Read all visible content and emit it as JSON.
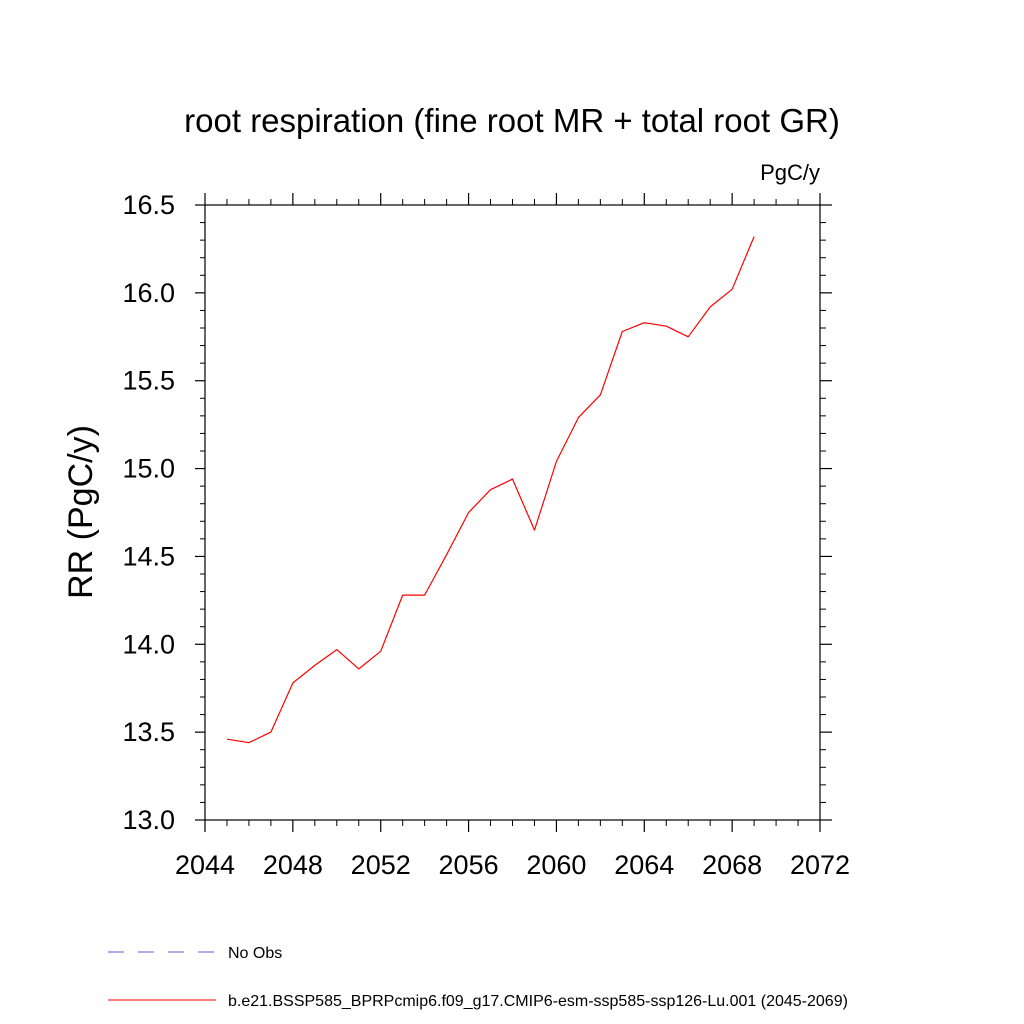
{
  "chart_data": {
    "type": "line",
    "title": "root respiration (fine root MR + total root GR)",
    "units": "PgC/y",
    "ylabel": "RR  (PgC/y)",
    "xlabel": "",
    "xlim": [
      2044,
      2072
    ],
    "ylim": [
      13.0,
      16.5
    ],
    "xticks": [
      2044,
      2048,
      2052,
      2056,
      2060,
      2064,
      2068,
      2072
    ],
    "xtick_labels": [
      "2044",
      "2048",
      "2052",
      "2056",
      "2060",
      "2064",
      "2068",
      "2072"
    ],
    "yticks": [
      13.0,
      13.5,
      14.0,
      14.5,
      15.0,
      15.5,
      16.0,
      16.5
    ],
    "ytick_labels": [
      "13.0",
      "13.5",
      "14.0",
      "14.5",
      "15.0",
      "15.5",
      "16.0",
      "16.5"
    ],
    "grid": false,
    "legend_placement": "bottom-left below plot",
    "series": [
      {
        "name": "b.e21.BSSP585_BPRPcmip6.f09_g17.CMIP6-esm-ssp585-ssp126-Lu.001 (2045-2069)",
        "color": "#ff0000",
        "style": "solid",
        "x": [
          2045,
          2046,
          2047,
          2048,
          2049,
          2050,
          2051,
          2052,
          2053,
          2054,
          2055,
          2056,
          2057,
          2058,
          2059,
          2060,
          2061,
          2062,
          2063,
          2064,
          2065,
          2066,
          2067,
          2068,
          2069
        ],
        "y": [
          13.46,
          13.44,
          13.5,
          13.78,
          13.88,
          13.97,
          13.86,
          13.96,
          14.28,
          14.28,
          14.51,
          14.75,
          14.88,
          14.94,
          14.65,
          15.04,
          15.29,
          15.42,
          15.78,
          15.83,
          15.81,
          15.75,
          15.92,
          16.02,
          16.32
        ]
      }
    ],
    "legend": [
      {
        "label": "No Obs",
        "color": "#6a5acd",
        "style": "dashed"
      },
      {
        "label": "b.e21.BSSP585_BPRPcmip6.f09_g17.CMIP6-esm-ssp585-ssp126-Lu.001 (2045-2069)",
        "color": "#ff0000",
        "style": "solid"
      }
    ]
  }
}
